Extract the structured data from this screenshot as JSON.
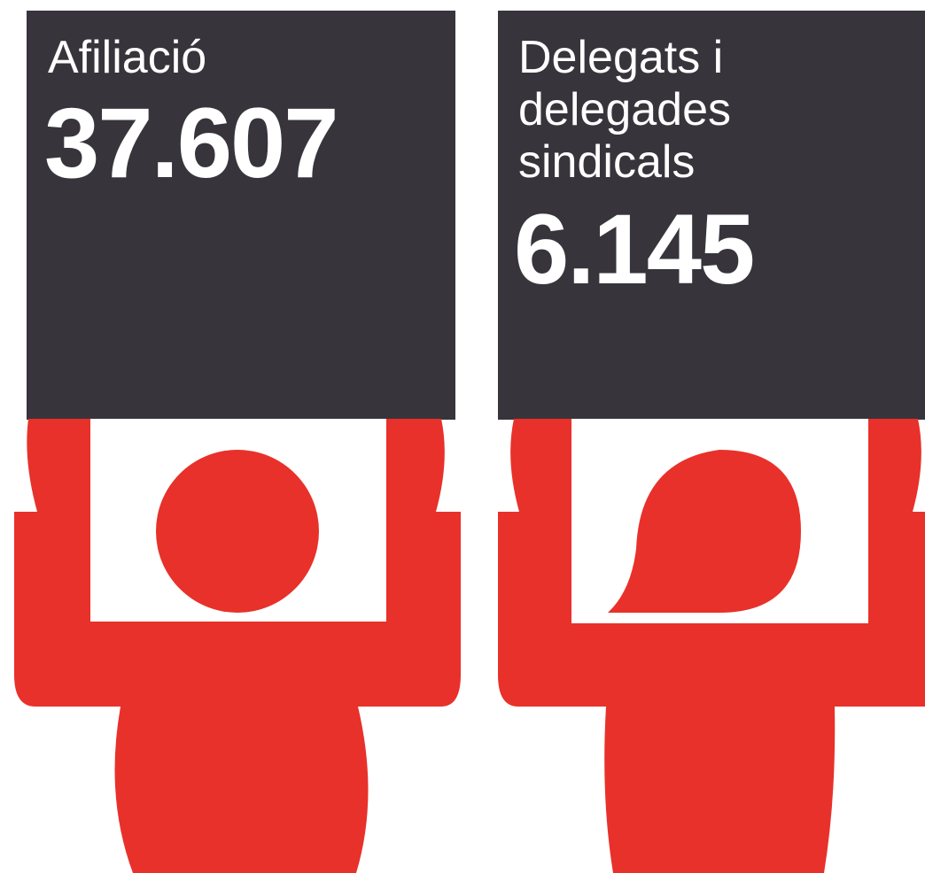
{
  "panels": [
    {
      "label_lines": [
        "Afiliació"
      ],
      "value": "37.607"
    },
    {
      "label_lines": [
        "Delegats i",
        "delegades",
        "sindicals"
      ],
      "value": "6.145"
    }
  ]
}
